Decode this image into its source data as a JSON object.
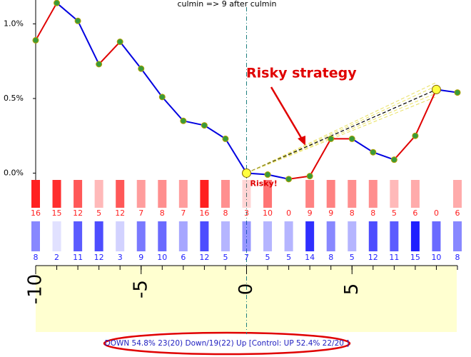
{
  "chart_data": {
    "type": "line",
    "title": "culmin => 9 after culmin",
    "x": [
      -10,
      -9,
      -8,
      -7,
      -6,
      -5,
      -4,
      -3,
      -2,
      -1,
      0,
      1,
      2,
      3,
      4,
      5,
      6,
      7,
      8,
      9,
      10
    ],
    "values": [
      0.89,
      1.14,
      1.02,
      0.73,
      0.88,
      0.7,
      0.51,
      0.35,
      0.32,
      0.23,
      0.0,
      -0.01,
      -0.04,
      -0.02,
      0.23,
      0.23,
      0.14,
      0.09,
      0.25,
      0.56,
      0.54
    ],
    "up_color": "#e00000",
    "down_color": "#0000e0",
    "point_color": "#3a9a3a",
    "highlight_x": [
      0,
      9
    ],
    "highlight_color": "#ffff40",
    "xlim": [
      -10,
      10
    ],
    "xticks": [
      -10,
      -5,
      0,
      5
    ],
    "ylim": [
      -0.06,
      1.16
    ],
    "yticks": [
      {
        "value": 1.0,
        "label": "1.0%"
      },
      {
        "value": 0.5,
        "label": "0.5%"
      },
      {
        "value": 0,
        "label": "0.0%"
      }
    ],
    "down_counts": {
      "color": "#ff2020",
      "values": [
        16,
        15,
        12,
        5,
        12,
        7,
        8,
        7,
        16,
        8,
        3,
        10,
        0,
        9,
        9,
        8,
        8,
        5,
        6,
        0,
        6
      ]
    },
    "up_counts": {
      "color": "#2020ff",
      "values": [
        8,
        2,
        11,
        12,
        3,
        9,
        10,
        6,
        12,
        5,
        7,
        5,
        5,
        14,
        8,
        5,
        12,
        11,
        15,
        10,
        8
      ]
    },
    "annotation": "Risky strategy",
    "point_label": "Risky!",
    "footer": "DOWN 54.8%  23(20) Down/19(22) Up [Control: UP 52.4%  22/20 ]"
  }
}
